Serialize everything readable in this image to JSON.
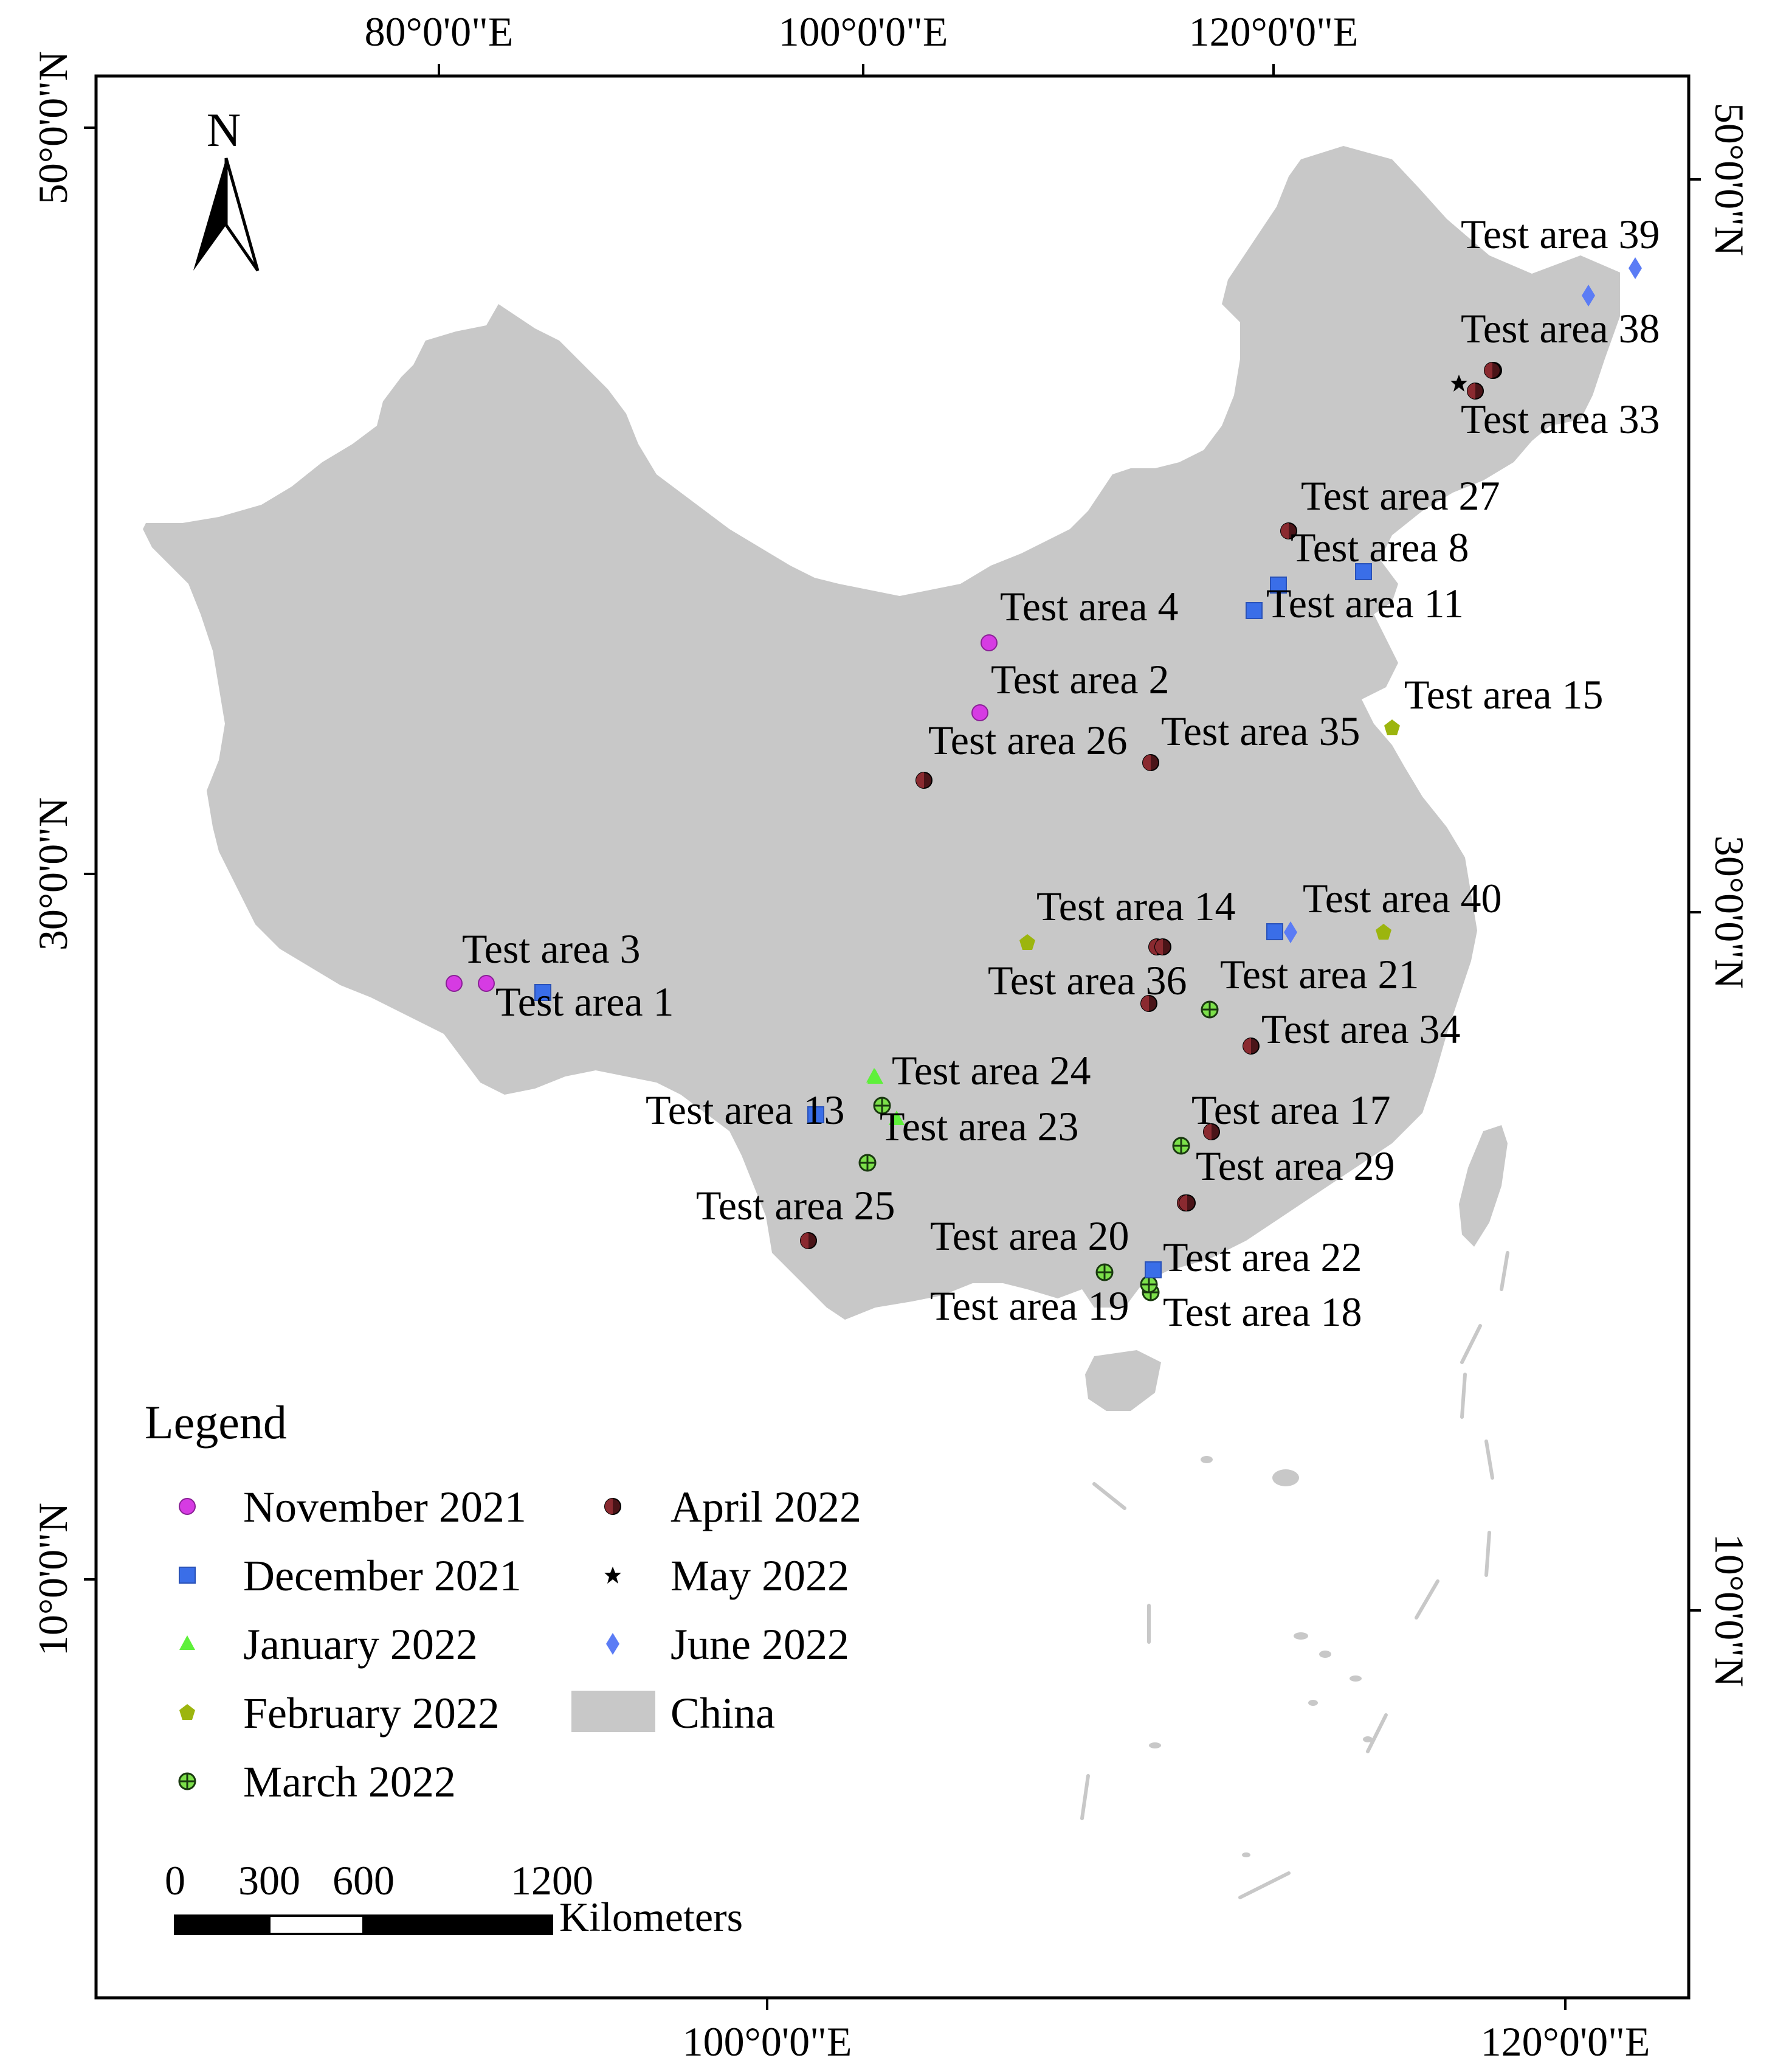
{
  "axes": {
    "top_lon": [
      "80°0'0\"E",
      "100°0'0\"E",
      "120°0'0\"E"
    ],
    "bottom_lon": [
      "100°0'0\"E",
      "120°0'0\"E"
    ],
    "left_lat": [
      "50°0'0\"N",
      "30°0'0\"N",
      "10°0'0\"N"
    ],
    "right_lat": [
      "50°0'0\"N",
      "30°0'0\"N",
      "10°0'0\"N"
    ]
  },
  "north_arrow": {
    "label": "N",
    "icon": "north-arrow-icon"
  },
  "colors": {
    "land": "#c8c8c8",
    "november_2021": "#d63be3",
    "december_2021": "#3a6ee8",
    "january_2022": "#5ef03a",
    "february_2022": "#9cb50e",
    "march_2022": "#7ce04a",
    "april_2022": "#4a1418",
    "may_2022": "#000000",
    "june_2022": "#5b7cf5"
  },
  "legend": {
    "title": "Legend",
    "items": [
      {
        "key": "november_2021",
        "label": "November 2021",
        "symbol": "circle"
      },
      {
        "key": "december_2021",
        "label": "December 2021",
        "symbol": "square"
      },
      {
        "key": "january_2022",
        "label": "January 2022",
        "symbol": "triangle"
      },
      {
        "key": "february_2022",
        "label": "February 2022",
        "symbol": "pentagon"
      },
      {
        "key": "march_2022",
        "label": "March 2022",
        "symbol": "crossed-circle"
      },
      {
        "key": "april_2022",
        "label": "April 2022",
        "symbol": "half-dark-circle"
      },
      {
        "key": "may_2022",
        "label": "May 2022",
        "symbol": "star"
      },
      {
        "key": "june_2022",
        "label": "June 2022",
        "symbol": "diamond"
      },
      {
        "key": "china",
        "label": "China",
        "symbol": "fill-box"
      }
    ]
  },
  "scale_bar": {
    "ticks": [
      "0",
      "300",
      "600",
      "1200"
    ],
    "units": "Kilometers"
  },
  "test_areas": [
    {
      "name": "Test area 1",
      "month": "december_2021"
    },
    {
      "name": "Test area 2",
      "month": "november_2021"
    },
    {
      "name": "Test area 3",
      "month": "november_2021"
    },
    {
      "name": "Test area 4",
      "month": "november_2021"
    },
    {
      "name": "Test area 8",
      "month": "december_2021"
    },
    {
      "name": "Test area 11",
      "month": "december_2021"
    },
    {
      "name": "Test area 13",
      "month": "december_2021"
    },
    {
      "name": "Test area 14",
      "month": "april_2022"
    },
    {
      "name": "Test area 15",
      "month": "february_2022"
    },
    {
      "name": "Test area 17",
      "month": "april_2022"
    },
    {
      "name": "Test area 18",
      "month": "march_2022"
    },
    {
      "name": "Test area 19",
      "month": "march_2022"
    },
    {
      "name": "Test area 20",
      "month": "march_2022"
    },
    {
      "name": "Test area 21",
      "month": "march_2022"
    },
    {
      "name": "Test area 22",
      "month": "december_2021"
    },
    {
      "name": "Test area 23",
      "month": "january_2022"
    },
    {
      "name": "Test area 24",
      "month": "january_2022"
    },
    {
      "name": "Test area 25",
      "month": "april_2022"
    },
    {
      "name": "Test area 26",
      "month": "april_2022"
    },
    {
      "name": "Test area 27",
      "month": "april_2022"
    },
    {
      "name": "Test area 29",
      "month": "april_2022"
    },
    {
      "name": "Test area 33",
      "month": "april_2022"
    },
    {
      "name": "Test area 34",
      "month": "april_2022"
    },
    {
      "name": "Test area 35",
      "month": "april_2022"
    },
    {
      "name": "Test area 36",
      "month": "april_2022"
    },
    {
      "name": "Test area 38",
      "month": "april_2022"
    },
    {
      "name": "Test area 39",
      "month": "june_2022"
    },
    {
      "name": "Test area 40",
      "month": "june_2022"
    }
  ]
}
